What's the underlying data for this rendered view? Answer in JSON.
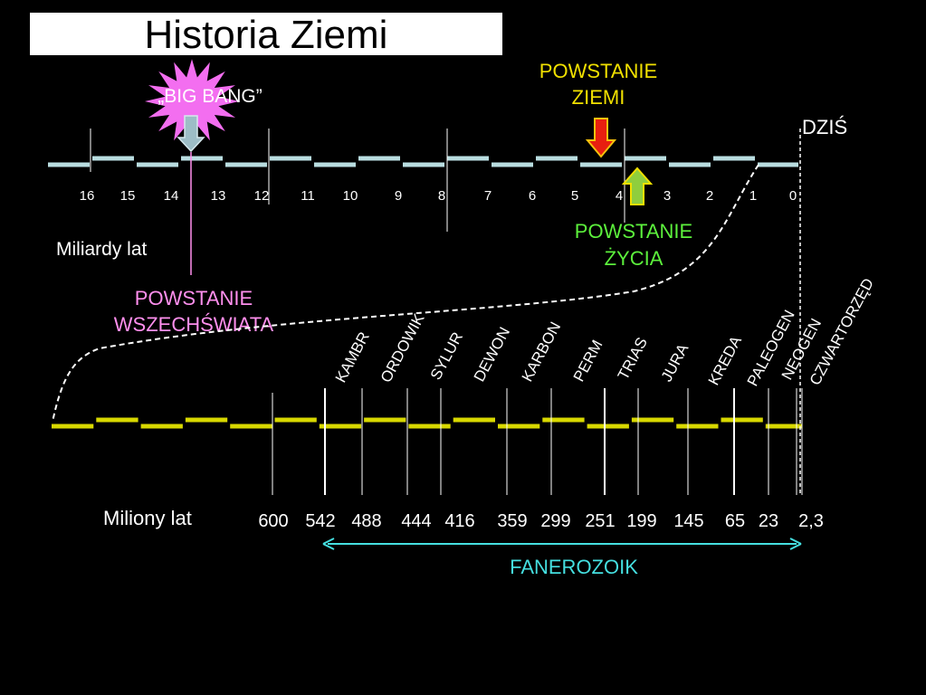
{
  "title": "Historia Ziemi",
  "colors": {
    "background": "#000000",
    "title_box": "#ffffff",
    "billions_axis": "#b9dde0",
    "millions_axis": "#d8d800",
    "big_bang_burst": "#f36ef0",
    "universe_label": "#ff8fee",
    "earth_label": "#f0e000",
    "life_label": "#5cf03c",
    "fanerozoik": "#45dfe0",
    "earth_arrow": "#e81f10",
    "life_arrow": "#8fce3d",
    "big_bang_arrow": "#9dbdc6"
  },
  "billions": {
    "unit_label": "Miliardy lat",
    "ticks": [
      "16",
      "15",
      "14",
      "13",
      "12",
      "11",
      "10",
      "9",
      "8",
      "7",
      "6",
      "5",
      "4",
      "3",
      "2",
      "1",
      "0"
    ]
  },
  "events": {
    "big_bang": "„BIG BANG”",
    "universe_line1": "POWSTANIE",
    "universe_line2": "WSZECHŚWIATA",
    "earth_line1": "POWSTANIE",
    "earth_line2": "ZIEMI",
    "life_line1": "POWSTANIE",
    "life_line2": "ŻYCIA",
    "today": "DZIŚ"
  },
  "millions": {
    "unit_label": "Miliony lat",
    "ticks": [
      "600",
      "542",
      "488",
      "444",
      "416",
      "359",
      "299",
      "251",
      "199",
      "145",
      "65",
      "23",
      "2,3"
    ],
    "periods": [
      "KAMBR",
      "ORDOWIK",
      "SYLUR",
      "DEWON",
      "KARBON",
      "PERM",
      "TRIAS",
      "JURA",
      "KREDA",
      "PALEOGEN",
      "NEOGEN",
      "CZWARTORZĘD"
    ],
    "eon_label": "FANEROZOIK"
  }
}
